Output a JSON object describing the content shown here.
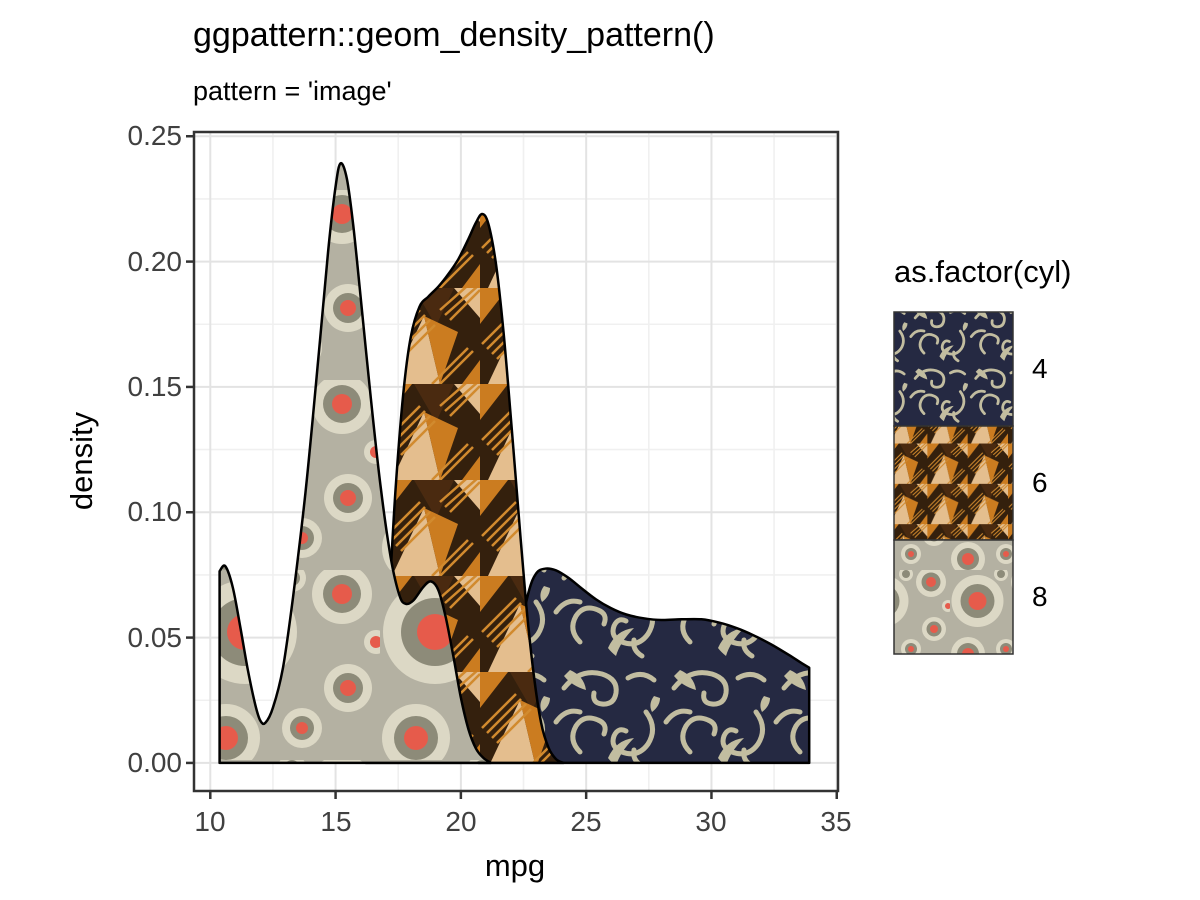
{
  "title": "ggpattern::geom_density_pattern()",
  "subtitle": "pattern = 'image'",
  "axes": {
    "x": {
      "label": "mpg",
      "ticks": [
        "10",
        "15",
        "20",
        "25",
        "30",
        "35"
      ]
    },
    "y": {
      "label": "density",
      "ticks": [
        "0.25",
        "0.20",
        "0.15",
        "0.10",
        "0.05",
        "0.00"
      ]
    }
  },
  "legend": {
    "title": "as.factor(cyl)",
    "entries": [
      {
        "label": "4",
        "pattern": "swirl"
      },
      {
        "label": "6",
        "pattern": "weave"
      },
      {
        "label": "8",
        "pattern": "circles"
      }
    ]
  },
  "colors": {
    "text": "#000000",
    "axis_text": "#404040",
    "panel_border": "#333333",
    "grid_major": "#e3e3e3",
    "grid_minor": "#f0f0f0",
    "outline": "#000000",
    "swirl_bg": "#252942",
    "swirl_fg": "#c2bda0",
    "weave_bg": "#34200d",
    "weave_orange": "#cb7c20",
    "weave_cream": "#e4be8e",
    "weave_shadow": "#4a2a10",
    "weave_line": "#d18a2e",
    "circ_bg": "#b4b1a2",
    "circ_ring": "#dcd8c5",
    "circ_mid": "#8d8b79",
    "circ_dot": "#e65b4b"
  },
  "chart_data": {
    "type": "area",
    "variant": "kernel-density",
    "title": "ggpattern::geom_density_pattern()",
    "subtitle": "pattern = 'image'",
    "xlabel": "mpg",
    "ylabel": "density",
    "legend_title": "as.factor(cyl)",
    "legend_position": "right",
    "grid": "major+minor",
    "xlim": [
      9.35,
      35.05
    ],
    "ylim": [
      -0.0112,
      0.2517
    ],
    "x_ticks": [
      10,
      15,
      20,
      25,
      30,
      35
    ],
    "y_ticks": [
      0,
      0.05,
      0.1,
      0.15,
      0.2,
      0.25
    ],
    "series": [
      {
        "name": "4",
        "pattern": "swirl",
        "points": [
          [
            20.7,
            0
          ],
          [
            21.1,
            0.003
          ],
          [
            21.5,
            0.011
          ],
          [
            21.9,
            0.026
          ],
          [
            22.3,
            0.049
          ],
          [
            22.7,
            0.068
          ],
          [
            23.0,
            0.0755
          ],
          [
            23.35,
            0.0775
          ],
          [
            23.8,
            0.0768
          ],
          [
            24.3,
            0.0738
          ],
          [
            24.8,
            0.0698
          ],
          [
            25.4,
            0.0652
          ],
          [
            26.0,
            0.0617
          ],
          [
            26.6,
            0.0592
          ],
          [
            27.3,
            0.0577
          ],
          [
            28.0,
            0.057
          ],
          [
            28.8,
            0.0573
          ],
          [
            29.6,
            0.0573
          ],
          [
            30.3,
            0.056
          ],
          [
            31.0,
            0.0538
          ],
          [
            31.7,
            0.0508
          ],
          [
            32.4,
            0.0472
          ],
          [
            33.1,
            0.043
          ],
          [
            33.6,
            0.0398
          ],
          [
            33.9,
            0.038
          ]
        ]
      },
      {
        "name": "6",
        "pattern": "weave",
        "points": [
          [
            16.2,
            0
          ],
          [
            16.6,
            0.008
          ],
          [
            16.9,
            0.03
          ],
          [
            17.15,
            0.068
          ],
          [
            17.4,
            0.11
          ],
          [
            17.7,
            0.147
          ],
          [
            18.0,
            0.17
          ],
          [
            18.35,
            0.182
          ],
          [
            18.7,
            0.186
          ],
          [
            19.1,
            0.19
          ],
          [
            19.5,
            0.195
          ],
          [
            19.9,
            0.201
          ],
          [
            20.3,
            0.209
          ],
          [
            20.6,
            0.2155
          ],
          [
            20.85,
            0.219
          ],
          [
            21.1,
            0.215
          ],
          [
            21.4,
            0.199
          ],
          [
            21.7,
            0.172
          ],
          [
            22.0,
            0.137
          ],
          [
            22.3,
            0.1
          ],
          [
            22.6,
            0.064
          ],
          [
            22.9,
            0.036
          ],
          [
            23.2,
            0.016
          ],
          [
            23.5,
            0.006
          ],
          [
            23.8,
            0.0015
          ],
          [
            24.1,
            0
          ]
        ]
      },
      {
        "name": "8",
        "pattern": "circles",
        "points": [
          [
            10.37,
            0.0765
          ],
          [
            10.6,
            0.0785
          ],
          [
            10.9,
            0.07
          ],
          [
            11.2,
            0.054
          ],
          [
            11.5,
            0.037
          ],
          [
            11.8,
            0.023
          ],
          [
            12.0,
            0.0168
          ],
          [
            12.2,
            0.016
          ],
          [
            12.5,
            0.022
          ],
          [
            12.9,
            0.038
          ],
          [
            13.3,
            0.066
          ],
          [
            13.8,
            0.108
          ],
          [
            14.3,
            0.16
          ],
          [
            14.7,
            0.204
          ],
          [
            15.0,
            0.23
          ],
          [
            15.2,
            0.2392
          ],
          [
            15.45,
            0.233
          ],
          [
            15.7,
            0.215
          ],
          [
            16.0,
            0.186
          ],
          [
            16.4,
            0.146
          ],
          [
            16.8,
            0.11
          ],
          [
            17.2,
            0.082
          ],
          [
            17.55,
            0.0668
          ],
          [
            17.8,
            0.0635
          ],
          [
            18.1,
            0.0648
          ],
          [
            18.5,
            0.0702
          ],
          [
            18.8,
            0.0724
          ],
          [
            19.1,
            0.069
          ],
          [
            19.4,
            0.058
          ],
          [
            19.7,
            0.0425
          ],
          [
            20.0,
            0.026
          ],
          [
            20.3,
            0.0135
          ],
          [
            20.6,
            0.0058
          ],
          [
            20.9,
            0.002
          ],
          [
            21.2,
            0
          ]
        ]
      }
    ]
  }
}
